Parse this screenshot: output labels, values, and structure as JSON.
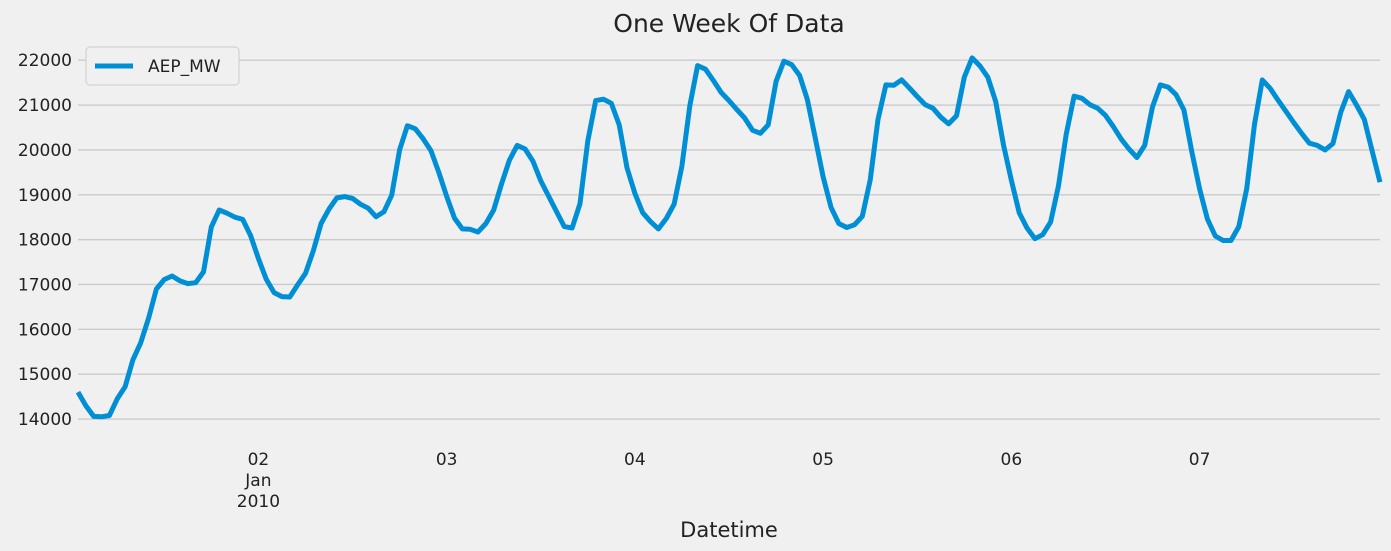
{
  "chart_data": {
    "type": "line",
    "title": "One Week Of Data",
    "xlabel": "Datetime",
    "ylabel": "",
    "x_start": "2010-01-01 01:00",
    "x_end": "2010-01-07 23:00",
    "x_range": [
      "2010-01-01 01:00",
      "2010-01-07 23:00"
    ],
    "ylim": [
      13600,
      22450
    ],
    "yticks": [
      14000,
      15000,
      16000,
      17000,
      18000,
      19000,
      20000,
      21000,
      22000
    ],
    "xticks": [
      {
        "date": "2010-01-02",
        "lines": [
          "02",
          "Jan",
          "2010"
        ]
      },
      {
        "date": "2010-01-03",
        "lines": [
          "03"
        ]
      },
      {
        "date": "2010-01-04",
        "lines": [
          "04"
        ]
      },
      {
        "date": "2010-01-05",
        "lines": [
          "05"
        ]
      },
      {
        "date": "2010-01-06",
        "lines": [
          "06"
        ]
      },
      {
        "date": "2010-01-07",
        "lines": [
          "07"
        ]
      }
    ],
    "grid": true,
    "legend": {
      "position": "top-left"
    },
    "colors": {
      "series": "#008fd5",
      "background": "#f0f0f0",
      "grid": "#cbcbcb"
    },
    "series": [
      {
        "name": "AEP_MW",
        "x": [
          "2010-01-01 01:00",
          "2010-01-01 02:00",
          "2010-01-01 03:00",
          "2010-01-01 04:00",
          "2010-01-01 05:00",
          "2010-01-01 06:00",
          "2010-01-01 07:00",
          "2010-01-01 08:00",
          "2010-01-01 09:00",
          "2010-01-01 10:00",
          "2010-01-01 11:00",
          "2010-01-01 12:00",
          "2010-01-01 13:00",
          "2010-01-01 14:00",
          "2010-01-01 15:00",
          "2010-01-01 16:00",
          "2010-01-01 17:00",
          "2010-01-01 18:00",
          "2010-01-01 19:00",
          "2010-01-01 20:00",
          "2010-01-01 21:00",
          "2010-01-01 22:00",
          "2010-01-01 23:00",
          "2010-01-02 00:00",
          "2010-01-02 01:00",
          "2010-01-02 02:00",
          "2010-01-02 03:00",
          "2010-01-02 04:00",
          "2010-01-02 05:00",
          "2010-01-02 06:00",
          "2010-01-02 07:00",
          "2010-01-02 08:00",
          "2010-01-02 09:00",
          "2010-01-02 10:00",
          "2010-01-02 11:00",
          "2010-01-02 12:00",
          "2010-01-02 13:00",
          "2010-01-02 14:00",
          "2010-01-02 15:00",
          "2010-01-02 16:00",
          "2010-01-02 17:00",
          "2010-01-02 18:00",
          "2010-01-02 19:00",
          "2010-01-02 20:00",
          "2010-01-02 21:00",
          "2010-01-02 22:00",
          "2010-01-02 23:00",
          "2010-01-03 00:00",
          "2010-01-03 01:00",
          "2010-01-03 02:00",
          "2010-01-03 03:00",
          "2010-01-03 04:00",
          "2010-01-03 05:00",
          "2010-01-03 06:00",
          "2010-01-03 07:00",
          "2010-01-03 08:00",
          "2010-01-03 09:00",
          "2010-01-03 10:00",
          "2010-01-03 11:00",
          "2010-01-03 12:00",
          "2010-01-03 13:00",
          "2010-01-03 14:00",
          "2010-01-03 15:00",
          "2010-01-03 16:00",
          "2010-01-03 17:00",
          "2010-01-03 18:00",
          "2010-01-03 19:00",
          "2010-01-03 20:00",
          "2010-01-03 21:00",
          "2010-01-03 22:00",
          "2010-01-03 23:00",
          "2010-01-04 00:00",
          "2010-01-04 01:00",
          "2010-01-04 02:00",
          "2010-01-04 03:00",
          "2010-01-04 04:00",
          "2010-01-04 05:00",
          "2010-01-04 06:00",
          "2010-01-04 07:00",
          "2010-01-04 08:00",
          "2010-01-04 09:00",
          "2010-01-04 10:00",
          "2010-01-04 11:00",
          "2010-01-04 12:00",
          "2010-01-04 13:00",
          "2010-01-04 14:00",
          "2010-01-04 15:00",
          "2010-01-04 16:00",
          "2010-01-04 17:00",
          "2010-01-04 18:00",
          "2010-01-04 19:00",
          "2010-01-04 20:00",
          "2010-01-04 21:00",
          "2010-01-04 22:00",
          "2010-01-04 23:00",
          "2010-01-05 00:00",
          "2010-01-05 01:00",
          "2010-01-05 02:00",
          "2010-01-05 03:00",
          "2010-01-05 04:00",
          "2010-01-05 05:00",
          "2010-01-05 06:00",
          "2010-01-05 07:00",
          "2010-01-05 08:00",
          "2010-01-05 09:00",
          "2010-01-05 10:00",
          "2010-01-05 11:00",
          "2010-01-05 12:00",
          "2010-01-05 13:00",
          "2010-01-05 14:00",
          "2010-01-05 15:00",
          "2010-01-05 16:00",
          "2010-01-05 17:00",
          "2010-01-05 18:00",
          "2010-01-05 19:00",
          "2010-01-05 20:00",
          "2010-01-05 21:00",
          "2010-01-05 22:00",
          "2010-01-05 23:00",
          "2010-01-06 00:00",
          "2010-01-06 01:00",
          "2010-01-06 02:00",
          "2010-01-06 03:00",
          "2010-01-06 04:00",
          "2010-01-06 05:00",
          "2010-01-06 06:00",
          "2010-01-06 07:00",
          "2010-01-06 08:00",
          "2010-01-06 09:00",
          "2010-01-06 10:00",
          "2010-01-06 11:00",
          "2010-01-06 12:00",
          "2010-01-06 13:00",
          "2010-01-06 14:00",
          "2010-01-06 15:00",
          "2010-01-06 16:00",
          "2010-01-06 17:00",
          "2010-01-06 18:00",
          "2010-01-06 19:00",
          "2010-01-06 20:00",
          "2010-01-06 21:00",
          "2010-01-06 22:00",
          "2010-01-06 23:00",
          "2010-01-07 00:00",
          "2010-01-07 01:00",
          "2010-01-07 02:00",
          "2010-01-07 03:00",
          "2010-01-07 04:00",
          "2010-01-07 05:00",
          "2010-01-07 06:00",
          "2010-01-07 07:00",
          "2010-01-07 08:00",
          "2010-01-07 09:00",
          "2010-01-07 10:00",
          "2010-01-07 11:00",
          "2010-01-07 12:00",
          "2010-01-07 13:00",
          "2010-01-07 14:00",
          "2010-01-07 15:00",
          "2010-01-07 16:00",
          "2010-01-07 17:00",
          "2010-01-07 18:00",
          "2010-01-07 19:00",
          "2010-01-07 20:00",
          "2010-01-07 21:00",
          "2010-01-07 22:00",
          "2010-01-07 23:00"
        ],
        "values": [
          14600,
          14300,
          14060,
          14050,
          14080,
          14450,
          14720,
          15320,
          15700,
          16250,
          16900,
          17110,
          17190,
          17080,
          17020,
          17040,
          17280,
          18280,
          18660,
          18590,
          18500,
          18450,
          18090,
          17580,
          17120,
          16820,
          16730,
          16720,
          16990,
          17250,
          17750,
          18360,
          18680,
          18930,
          18960,
          18920,
          18790,
          18700,
          18510,
          18620,
          18990,
          20000,
          20540,
          20470,
          20250,
          19980,
          19500,
          18970,
          18480,
          18240,
          18230,
          18170,
          18360,
          18660,
          19240,
          19770,
          20100,
          20020,
          19750,
          19310,
          18970,
          18630,
          18290,
          18260,
          18800,
          20200,
          21100,
          21130,
          21040,
          20560,
          19600,
          19030,
          18600,
          18400,
          18240,
          18470,
          18790,
          19640,
          20980,
          21880,
          21800,
          21550,
          21280,
          21100,
          20900,
          20710,
          20440,
          20370,
          20560,
          21530,
          21980,
          21900,
          21660,
          21120,
          20260,
          19400,
          18720,
          18360,
          18270,
          18330,
          18520,
          19330,
          20680,
          21450,
          21440,
          21560,
          21380,
          21190,
          21010,
          20930,
          20730,
          20580,
          20760,
          21620,
          22050,
          21870,
          21620,
          21080,
          20110,
          19320,
          18600,
          18260,
          18020,
          18110,
          18390,
          19190,
          20360,
          21200,
          21150,
          21010,
          20930,
          20770,
          20520,
          20240,
          20020,
          19830,
          20100,
          20960,
          21450,
          21400,
          21230,
          20890,
          19960,
          19130,
          18460,
          18080,
          17980,
          17980,
          18290,
          19130,
          20570,
          21560,
          21370,
          21110,
          20860,
          20610,
          20370,
          20150,
          20100,
          20000,
          20140,
          20840,
          21300,
          21000,
          20680,
          19970,
          19280
        ]
      }
    ]
  }
}
